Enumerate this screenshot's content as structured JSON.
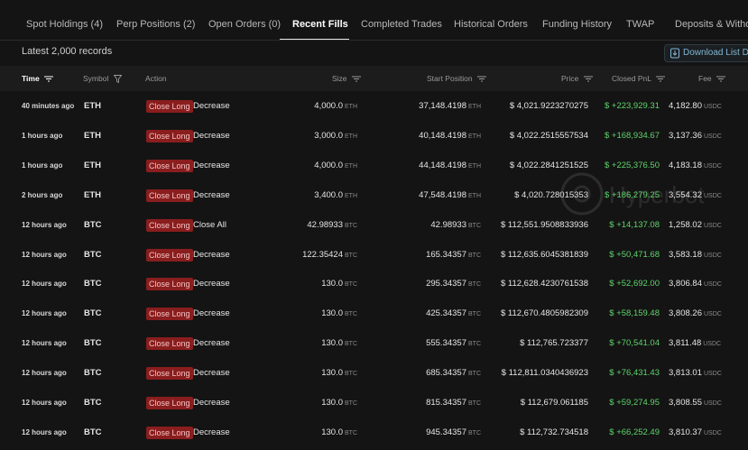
{
  "tabs": [
    {
      "label": "Spot Holdings (4)"
    },
    {
      "label": "Perp Positions (2)"
    },
    {
      "label": "Open Orders (0)"
    },
    {
      "label": "Recent Fills"
    },
    {
      "label": "Completed Trades"
    },
    {
      "label": "Historical Orders"
    },
    {
      "label": "Funding History"
    },
    {
      "label": "TWAP"
    },
    {
      "label": "Deposits & Withdrawals"
    }
  ],
  "records_label": "Latest 2,000 records",
  "download_label": "Download List Data",
  "watermark_text": "Hyperbot",
  "columns": {
    "time": "Time",
    "symbol": "Symbol",
    "action": "Action",
    "size": "Size",
    "start_position": "Start Position",
    "price": "Price",
    "closed_pnl": "Closed PnL",
    "fee": "Fee"
  },
  "rows": [
    {
      "time": "40 minutes ago",
      "symbol": "ETH",
      "badge": "Close Long",
      "action": "Decrease",
      "size": "4,000.0",
      "size_unit": "ETH",
      "start": "37,148.4198",
      "start_unit": "ETH",
      "price": "$ 4,021.9223270275",
      "pnl": "$ +223,929.31",
      "fee": "4,182.80",
      "fee_unit": "USDC"
    },
    {
      "time": "1 hours ago",
      "symbol": "ETH",
      "badge": "Close Long",
      "action": "Decrease",
      "size": "3,000.0",
      "size_unit": "ETH",
      "start": "40,148.4198",
      "start_unit": "ETH",
      "price": "$ 4,022.2515557534",
      "pnl": "$ +168,934.67",
      "fee": "3,137.36",
      "fee_unit": "USDC"
    },
    {
      "time": "1 hours ago",
      "symbol": "ETH",
      "badge": "Close Long",
      "action": "Decrease",
      "size": "4,000.0",
      "size_unit": "ETH",
      "start": "44,148.4198",
      "start_unit": "ETH",
      "price": "$ 4,022.2841251525",
      "pnl": "$ +225,376.50",
      "fee": "4,183.18",
      "fee_unit": "USDC"
    },
    {
      "time": "2 hours ago",
      "symbol": "ETH",
      "badge": "Close Long",
      "action": "Decrease",
      "size": "3,400.0",
      "size_unit": "ETH",
      "start": "47,548.4198",
      "start_unit": "ETH",
      "price": "$ 4,020.728015353",
      "pnl": "$ +186,279.25",
      "fee": "3,554.32",
      "fee_unit": "USDC"
    },
    {
      "time": "12 hours ago",
      "symbol": "BTC",
      "badge": "Close Long",
      "action": "Close All",
      "size": "42.98933",
      "size_unit": "BTC",
      "start": "42.98933",
      "start_unit": "BTC",
      "price": "$ 112,551.9508833936",
      "pnl": "$ +14,137.08",
      "fee": "1,258.02",
      "fee_unit": "USDC"
    },
    {
      "time": "12 hours ago",
      "symbol": "BTC",
      "badge": "Close Long",
      "action": "Decrease",
      "size": "122.35424",
      "size_unit": "BTC",
      "start": "165.34357",
      "start_unit": "BTC",
      "price": "$ 112,635.6045381839",
      "pnl": "$ +50,471.68",
      "fee": "3,583.18",
      "fee_unit": "USDC"
    },
    {
      "time": "12 hours ago",
      "symbol": "BTC",
      "badge": "Close Long",
      "action": "Decrease",
      "size": "130.0",
      "size_unit": "BTC",
      "start": "295.34357",
      "start_unit": "BTC",
      "price": "$ 112,628.4230761538",
      "pnl": "$ +52,692.00",
      "fee": "3,806.84",
      "fee_unit": "USDC"
    },
    {
      "time": "12 hours ago",
      "symbol": "BTC",
      "badge": "Close Long",
      "action": "Decrease",
      "size": "130.0",
      "size_unit": "BTC",
      "start": "425.34357",
      "start_unit": "BTC",
      "price": "$ 112,670.4805982309",
      "pnl": "$ +58,159.48",
      "fee": "3,808.26",
      "fee_unit": "USDC"
    },
    {
      "time": "12 hours ago",
      "symbol": "BTC",
      "badge": "Close Long",
      "action": "Decrease",
      "size": "130.0",
      "size_unit": "BTC",
      "start": "555.34357",
      "start_unit": "BTC",
      "price": "$ 112,765.723377",
      "pnl": "$ +70,541.04",
      "fee": "3,811.48",
      "fee_unit": "USDC"
    },
    {
      "time": "12 hours ago",
      "symbol": "BTC",
      "badge": "Close Long",
      "action": "Decrease",
      "size": "130.0",
      "size_unit": "BTC",
      "start": "685.34357",
      "start_unit": "BTC",
      "price": "$ 112,811.0340436923",
      "pnl": "$ +76,431.43",
      "fee": "3,813.01",
      "fee_unit": "USDC"
    },
    {
      "time": "12 hours ago",
      "symbol": "BTC",
      "badge": "Close Long",
      "action": "Decrease",
      "size": "130.0",
      "size_unit": "BTC",
      "start": "815.34357",
      "start_unit": "BTC",
      "price": "$ 112,679.061185",
      "pnl": "$ +59,274.95",
      "fee": "3,808.55",
      "fee_unit": "USDC"
    },
    {
      "time": "12 hours ago",
      "symbol": "BTC",
      "badge": "Close Long",
      "action": "Decrease",
      "size": "130.0",
      "size_unit": "BTC",
      "start": "945.34357",
      "start_unit": "BTC",
      "price": "$ 112,732.734518",
      "pnl": "$ +66,252.49",
      "fee": "3,810.37",
      "fee_unit": "USDC"
    }
  ],
  "colors": {
    "pnl_positive": "#5fd46b",
    "badge_bg": "#8a1d1d",
    "accent": "#7fb6d4"
  }
}
